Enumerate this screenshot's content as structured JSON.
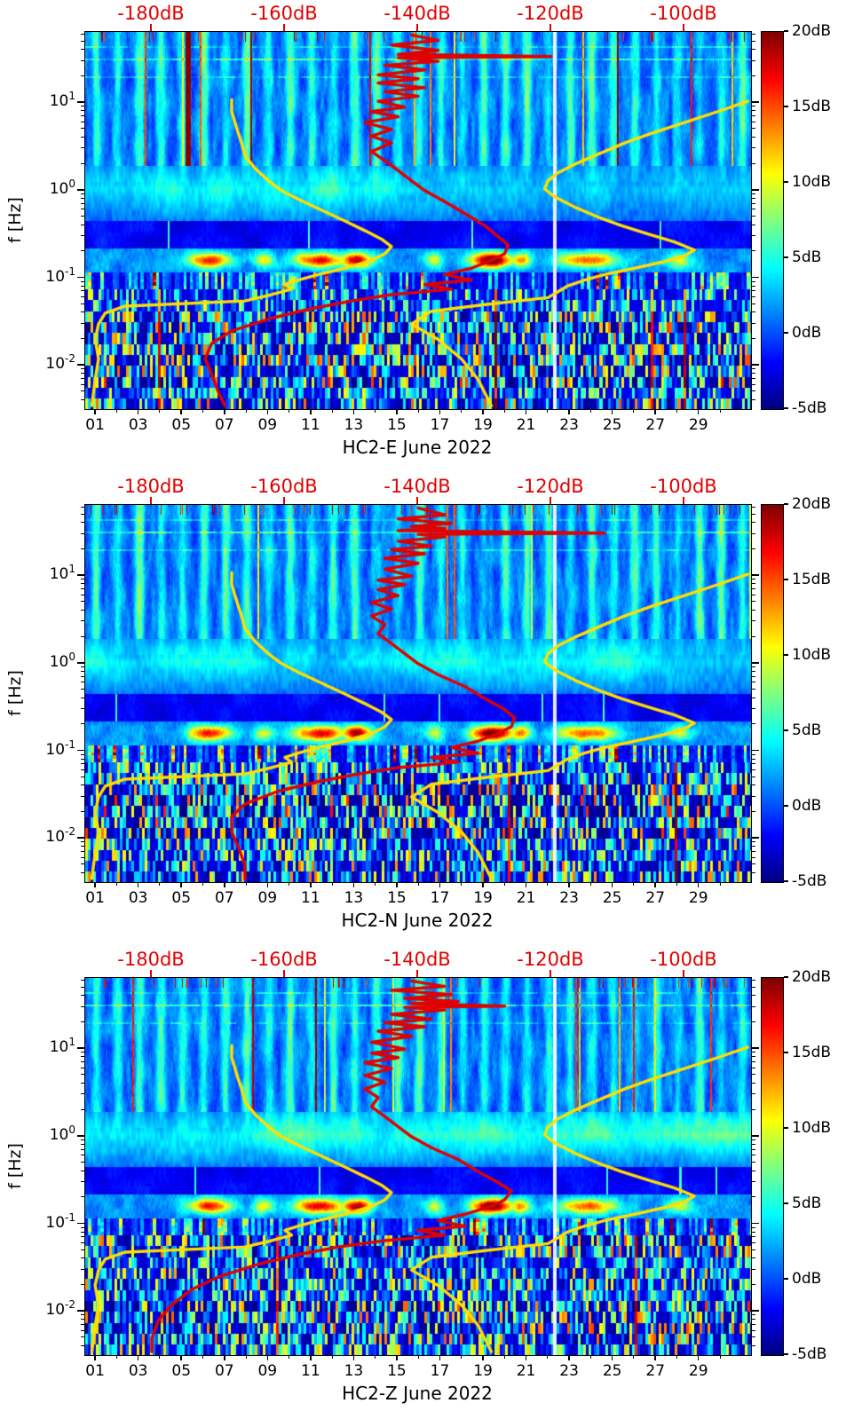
{
  "chart_data": {
    "type": "heatmap",
    "subtype": "spectrogram-with-psd-curves",
    "y_axis": {
      "label": "f [Hz]",
      "scale": "log",
      "range_hz": [
        0.0032,
        65
      ],
      "ticks": [
        {
          "base": "10",
          "exp": "1",
          "f": 10
        },
        {
          "base": "10",
          "exp": "0",
          "f": 1
        },
        {
          "base": "10",
          "exp": "-1",
          "f": 0.1
        },
        {
          "base": "10",
          "exp": "-2",
          "f": 0.01
        }
      ]
    },
    "x_axis": {
      "tick_labels": [
        "01",
        "03",
        "05",
        "07",
        "09",
        "11",
        "13",
        "15",
        "17",
        "19",
        "21",
        "23",
        "25",
        "27",
        "29"
      ],
      "tick_days": [
        1,
        3,
        5,
        7,
        9,
        11,
        13,
        15,
        17,
        19,
        21,
        23,
        25,
        27,
        29
      ],
      "days_span": 30.9
    },
    "top_axis": {
      "labels": [
        "-180dB",
        "-160dB",
        "-140dB",
        "-120dB",
        "-100dB"
      ],
      "values": [
        -180,
        -160,
        -140,
        -120,
        -100
      ],
      "range": [
        -190,
        -90
      ],
      "color": "#e10000"
    },
    "colorbar": {
      "labels": [
        "20dB",
        "15dB",
        "10dB",
        "5dB",
        "0dB",
        "-5dB"
      ],
      "values": [
        20,
        15,
        10,
        5,
        0,
        -5
      ],
      "range": [
        -5,
        20
      ],
      "colormap": "jet"
    },
    "curve_point_format": "[frequency_hz, dB]",
    "mode_curve_color": "#e10000",
    "noise_model_curves": {
      "color": "#ffdf00",
      "low": [
        [
          11,
          -168
        ],
        [
          8,
          -168
        ],
        [
          6,
          -167.5
        ],
        [
          4.5,
          -167
        ],
        [
          3.5,
          -166.5
        ],
        [
          2.5,
          -166
        ],
        [
          1.8,
          -164.5
        ],
        [
          1.3,
          -162.5
        ],
        [
          1.0,
          -160.5
        ],
        [
          0.8,
          -158
        ],
        [
          0.6,
          -154.5
        ],
        [
          0.45,
          -151
        ],
        [
          0.35,
          -148
        ],
        [
          0.28,
          -145.5
        ],
        [
          0.23,
          -144
        ],
        [
          0.19,
          -145
        ],
        [
          0.16,
          -147
        ],
        [
          0.13,
          -151
        ],
        [
          0.11,
          -155
        ],
        [
          0.095,
          -158
        ],
        [
          0.085,
          -160
        ],
        [
          0.075,
          -159
        ],
        [
          0.065,
          -162
        ],
        [
          0.055,
          -166
        ],
        [
          0.048,
          -184
        ],
        [
          0.04,
          -187
        ],
        [
          0.03,
          -188
        ],
        [
          0.02,
          -188.5
        ],
        [
          0.012,
          -188
        ],
        [
          0.007,
          -188.5
        ],
        [
          0.0035,
          -189
        ]
      ],
      "high": [
        [
          10.5,
          -90.5
        ],
        [
          8,
          -95
        ],
        [
          6,
          -100
        ],
        [
          4.5,
          -105
        ],
        [
          3.5,
          -109
        ],
        [
          2.6,
          -113
        ],
        [
          2.0,
          -116.5
        ],
        [
          1.6,
          -119
        ],
        [
          1.3,
          -120.5
        ],
        [
          1.05,
          -121
        ],
        [
          0.85,
          -119.5
        ],
        [
          0.65,
          -116.5
        ],
        [
          0.5,
          -113
        ],
        [
          0.4,
          -109.5
        ],
        [
          0.32,
          -105.5
        ],
        [
          0.26,
          -101.5
        ],
        [
          0.21,
          -98.5
        ],
        [
          0.18,
          -100
        ],
        [
          0.155,
          -103
        ],
        [
          0.13,
          -107.5
        ],
        [
          0.11,
          -112
        ],
        [
          0.095,
          -115
        ],
        [
          0.082,
          -117.5
        ],
        [
          0.07,
          -119
        ],
        [
          0.06,
          -120.5
        ],
        [
          0.05,
          -130
        ],
        [
          0.042,
          -138
        ],
        [
          0.03,
          -141
        ],
        [
          0.02,
          -137
        ],
        [
          0.012,
          -133.5
        ],
        [
          0.007,
          -131
        ],
        [
          0.0035,
          -129
        ]
      ]
    },
    "hotspot_days": [
      [
        5.8,
        1.0,
        15
      ],
      [
        8.3,
        0.5,
        9
      ],
      [
        10.9,
        1.2,
        16
      ],
      [
        12.6,
        0.7,
        18
      ],
      [
        16.2,
        0.4,
        8
      ],
      [
        18.9,
        1.0,
        20
      ],
      [
        20.2,
        0.5,
        12
      ],
      [
        23.3,
        1.4,
        13
      ],
      [
        27.6,
        0.6,
        8
      ]
    ],
    "gap_day": 21.8,
    "panels": [
      {
        "id": "HC2-E",
        "xlabel": "HC2-E June 2022",
        "mode_curve": [
          [
            60,
            -141
          ],
          [
            52,
            -137
          ],
          [
            46,
            -144
          ],
          [
            40,
            -137
          ],
          [
            36,
            -143
          ],
          [
            34,
            -120
          ],
          [
            33,
            -143
          ],
          [
            30,
            -137
          ],
          [
            27,
            -145
          ],
          [
            24,
            -139
          ],
          [
            21,
            -146
          ],
          [
            19,
            -140
          ],
          [
            17,
            -146
          ],
          [
            15,
            -139
          ],
          [
            13.5,
            -145
          ],
          [
            12,
            -140
          ],
          [
            10.5,
            -146
          ],
          [
            9,
            -142
          ],
          [
            8,
            -147
          ],
          [
            7,
            -143
          ],
          [
            6,
            -148
          ],
          [
            5,
            -144
          ],
          [
            4.2,
            -147
          ],
          [
            3.5,
            -144
          ],
          [
            2.8,
            -147
          ],
          [
            2.2,
            -145
          ],
          [
            1.7,
            -143
          ],
          [
            1.3,
            -141
          ],
          [
            1.0,
            -139
          ],
          [
            0.75,
            -136
          ],
          [
            0.55,
            -133
          ],
          [
            0.4,
            -130
          ],
          [
            0.3,
            -128
          ],
          [
            0.24,
            -126.5
          ],
          [
            0.19,
            -127
          ],
          [
            0.16,
            -129
          ],
          [
            0.13,
            -132
          ],
          [
            0.11,
            -136
          ],
          [
            0.095,
            -132
          ],
          [
            0.085,
            -139
          ],
          [
            0.075,
            -135
          ],
          [
            0.065,
            -144
          ],
          [
            0.055,
            -150
          ],
          [
            0.045,
            -156
          ],
          [
            0.035,
            -162
          ],
          [
            0.025,
            -168
          ],
          [
            0.018,
            -171
          ],
          [
            0.012,
            -172
          ],
          [
            0.008,
            -171
          ],
          [
            0.005,
            -170
          ],
          [
            0.0035,
            -169
          ]
        ]
      },
      {
        "id": "HC2-N",
        "xlabel": "HC2-N June 2022",
        "mode_curve": [
          [
            60,
            -140
          ],
          [
            50,
            -136
          ],
          [
            45,
            -143
          ],
          [
            40,
            -135
          ],
          [
            37,
            -141
          ],
          [
            35,
            -136
          ],
          [
            33,
            -143
          ],
          [
            31,
            -112
          ],
          [
            30,
            -140
          ],
          [
            28,
            -136
          ],
          [
            25,
            -143
          ],
          [
            22,
            -138
          ],
          [
            20,
            -144
          ],
          [
            18,
            -139
          ],
          [
            16,
            -145
          ],
          [
            14,
            -140
          ],
          [
            12,
            -145
          ],
          [
            10,
            -141
          ],
          [
            9,
            -146
          ],
          [
            8,
            -142
          ],
          [
            7,
            -146
          ],
          [
            6,
            -143
          ],
          [
            5,
            -147
          ],
          [
            4.2,
            -144
          ],
          [
            3.5,
            -147
          ],
          [
            2.8,
            -145
          ],
          [
            2.2,
            -146
          ],
          [
            1.7,
            -144
          ],
          [
            1.3,
            -142
          ],
          [
            1.0,
            -140
          ],
          [
            0.75,
            -137
          ],
          [
            0.55,
            -133
          ],
          [
            0.4,
            -130
          ],
          [
            0.3,
            -127
          ],
          [
            0.24,
            -125.5
          ],
          [
            0.19,
            -126
          ],
          [
            0.16,
            -128
          ],
          [
            0.13,
            -131
          ],
          [
            0.11,
            -135
          ],
          [
            0.095,
            -131
          ],
          [
            0.085,
            -138
          ],
          [
            0.075,
            -134
          ],
          [
            0.065,
            -143
          ],
          [
            0.055,
            -149
          ],
          [
            0.045,
            -155
          ],
          [
            0.035,
            -161
          ],
          [
            0.025,
            -166
          ],
          [
            0.018,
            -168
          ],
          [
            0.012,
            -168
          ],
          [
            0.008,
            -167
          ],
          [
            0.005,
            -166
          ],
          [
            0.0035,
            -166
          ]
        ]
      },
      {
        "id": "HC2-Z",
        "xlabel": "HC2-Z June 2022",
        "mode_curve": [
          [
            60,
            -141
          ],
          [
            52,
            -136
          ],
          [
            47,
            -144
          ],
          [
            42,
            -135
          ],
          [
            38,
            -142
          ],
          [
            35,
            -134
          ],
          [
            33,
            -141
          ],
          [
            31,
            -127
          ],
          [
            30,
            -142
          ],
          [
            28,
            -136
          ],
          [
            25,
            -144
          ],
          [
            22,
            -138
          ],
          [
            20,
            -145
          ],
          [
            18,
            -139
          ],
          [
            16,
            -146
          ],
          [
            14,
            -141
          ],
          [
            12,
            -147
          ],
          [
            10,
            -142
          ],
          [
            9,
            -147
          ],
          [
            8,
            -143
          ],
          [
            7,
            -148
          ],
          [
            6,
            -144
          ],
          [
            5,
            -148
          ],
          [
            4.2,
            -145
          ],
          [
            3.5,
            -148
          ],
          [
            2.8,
            -146
          ],
          [
            2.2,
            -147
          ],
          [
            1.7,
            -145
          ],
          [
            1.3,
            -143
          ],
          [
            1.0,
            -141
          ],
          [
            0.75,
            -138
          ],
          [
            0.55,
            -134
          ],
          [
            0.4,
            -131
          ],
          [
            0.3,
            -128
          ],
          [
            0.24,
            -126
          ],
          [
            0.19,
            -127
          ],
          [
            0.16,
            -129
          ],
          [
            0.13,
            -133
          ],
          [
            0.11,
            -137
          ],
          [
            0.095,
            -133
          ],
          [
            0.085,
            -140
          ],
          [
            0.075,
            -136
          ],
          [
            0.065,
            -145
          ],
          [
            0.055,
            -152
          ],
          [
            0.045,
            -158
          ],
          [
            0.035,
            -164
          ],
          [
            0.025,
            -170
          ],
          [
            0.018,
            -174
          ],
          [
            0.012,
            -177
          ],
          [
            0.008,
            -179
          ],
          [
            0.005,
            -180
          ],
          [
            0.0035,
            -180
          ]
        ]
      }
    ]
  }
}
